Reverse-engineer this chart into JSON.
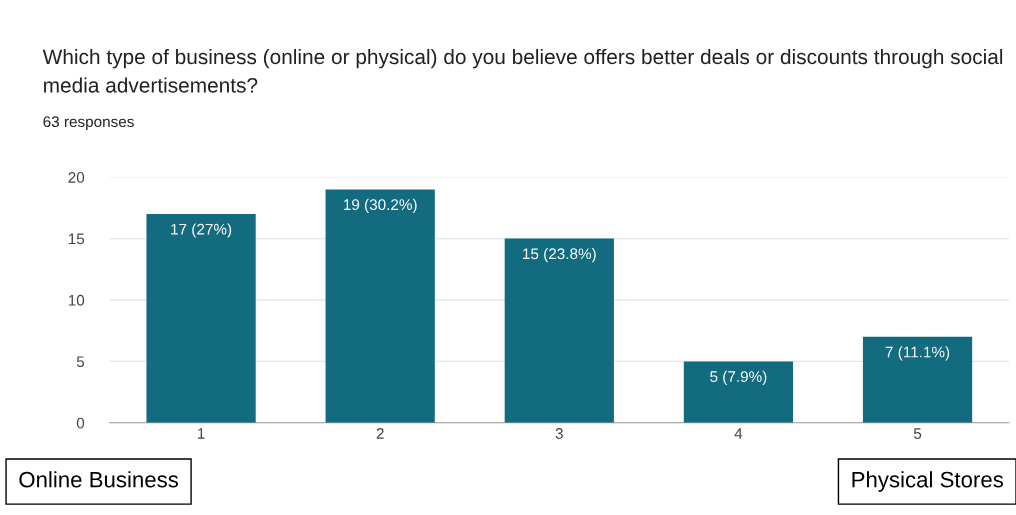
{
  "chart_data": {
    "type": "bar",
    "title": "Which type of business (online or physical) do you believe offers better deals or discounts through social media advertisements?",
    "subtitle": "63 responses",
    "categories": [
      "1",
      "2",
      "3",
      "4",
      "5"
    ],
    "values": [
      17,
      19,
      15,
      5,
      7
    ],
    "value_labels": [
      "17 (27%)",
      "19 (30.2%)",
      "15 (23.8%)",
      "5 (7.9%)",
      "7 (11.1%)"
    ],
    "color": "#136b80",
    "ylim": [
      0,
      20
    ],
    "yticks": [
      0,
      5,
      10,
      15,
      20
    ],
    "grid": "y",
    "legend": false,
    "annotations": [
      "Online Business",
      "Physical Stores"
    ]
  }
}
